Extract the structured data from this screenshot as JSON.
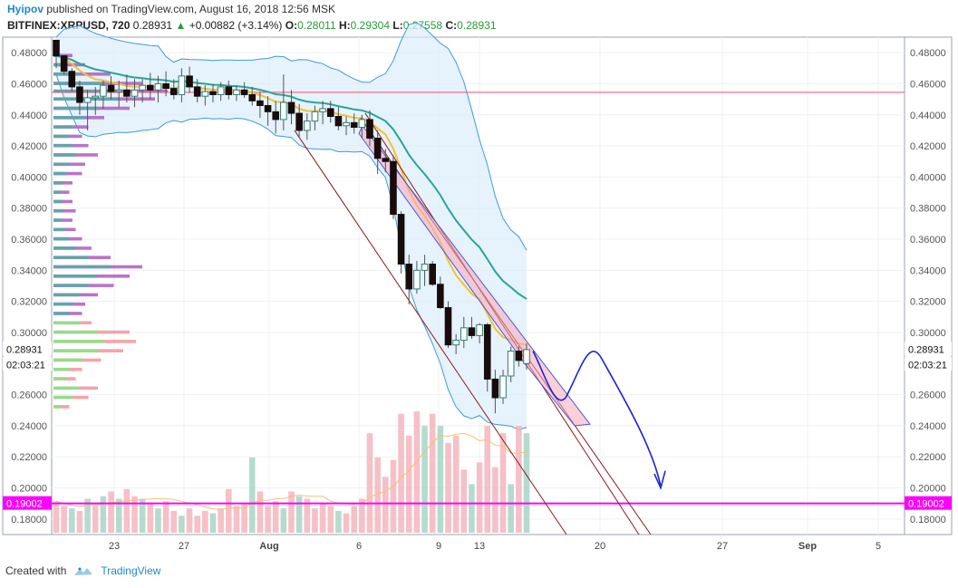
{
  "header": {
    "author": "Hyipov",
    "published": "published on TradingView.com, August 16, 2018 12:56 MSK",
    "symbol": "BITFINEX:XRPUSD, 720",
    "last": "0.28931",
    "change": "+0.00882 (+3.14%)",
    "o_label": "O:",
    "o": "0.28011",
    "h_label": "H:",
    "h": "0.29304",
    "l_label": "L:",
    "l": "0.27558",
    "c_label": "C:",
    "c": "0.28931"
  },
  "footer": {
    "created_with": "Created with",
    "brand": "TradingView"
  },
  "colors": {
    "up": "#ffffff",
    "down": "#1a0a0a",
    "pink_line": "#ff4d6d",
    "magenta": "#ff00ff",
    "channel": "#8b1a1a",
    "arrow": "#1a24d8",
    "ema_yellow": "#f2c230",
    "ema_teal": "#26a69a",
    "band": "#dcecfb",
    "vol_up": "#a8d5c4",
    "vol_down": "#f4b5bd"
  },
  "chart_data": {
    "type": "candlestick",
    "y_axis": {
      "min": 0.17,
      "max": 0.49,
      "ticks": [
        "0.48000",
        "0.46000",
        "0.44000",
        "0.42000",
        "0.40000",
        "0.38000",
        "0.36000",
        "0.34000",
        "0.32000",
        "0.30000",
        "0.26000",
        "0.24000",
        "0.22000",
        "0.20000",
        "0.18000"
      ]
    },
    "x_axis": {
      "ticks": [
        "23",
        "27",
        "Aug",
        "6",
        "9",
        "13",
        "20",
        "27",
        "Sep",
        "5"
      ]
    },
    "price_label": "0.28931",
    "countdown_label": "02:03:21",
    "level_label": "0.19002",
    "horizontal_line": 0.4545,
    "candles": [
      [
        0.488,
        0.488,
        0.47,
        0.478
      ],
      [
        0.478,
        0.478,
        0.466,
        0.468
      ],
      [
        0.468,
        0.47,
        0.455,
        0.458
      ],
      [
        0.458,
        0.462,
        0.44,
        0.448
      ],
      [
        0.448,
        0.456,
        0.43,
        0.451
      ],
      [
        0.451,
        0.458,
        0.44,
        0.452
      ],
      [
        0.452,
        0.462,
        0.444,
        0.459
      ],
      [
        0.459,
        0.465,
        0.45,
        0.455
      ],
      [
        0.455,
        0.462,
        0.445,
        0.456
      ],
      [
        0.456,
        0.466,
        0.448,
        0.452
      ],
      [
        0.452,
        0.463,
        0.445,
        0.456
      ],
      [
        0.456,
        0.463,
        0.448,
        0.459
      ],
      [
        0.459,
        0.467,
        0.45,
        0.456
      ],
      [
        0.456,
        0.465,
        0.448,
        0.46
      ],
      [
        0.46,
        0.468,
        0.452,
        0.457
      ],
      [
        0.457,
        0.463,
        0.45,
        0.453
      ],
      [
        0.453,
        0.47,
        0.448,
        0.465
      ],
      [
        0.465,
        0.471,
        0.454,
        0.458
      ],
      [
        0.458,
        0.463,
        0.448,
        0.452
      ],
      [
        0.452,
        0.459,
        0.446,
        0.455
      ],
      [
        0.455,
        0.46,
        0.448,
        0.453
      ],
      [
        0.453,
        0.461,
        0.449,
        0.458
      ],
      [
        0.458,
        0.462,
        0.45,
        0.453
      ],
      [
        0.453,
        0.459,
        0.449,
        0.456
      ],
      [
        0.456,
        0.461,
        0.451,
        0.453
      ],
      [
        0.453,
        0.458,
        0.446,
        0.449
      ],
      [
        0.449,
        0.455,
        0.438,
        0.446
      ],
      [
        0.446,
        0.452,
        0.433,
        0.442
      ],
      [
        0.442,
        0.449,
        0.428,
        0.437
      ],
      [
        0.437,
        0.466,
        0.43,
        0.448
      ],
      [
        0.448,
        0.456,
        0.434,
        0.441
      ],
      [
        0.441,
        0.447,
        0.426,
        0.43
      ],
      [
        0.43,
        0.441,
        0.424,
        0.436
      ],
      [
        0.436,
        0.446,
        0.43,
        0.442
      ],
      [
        0.442,
        0.449,
        0.434,
        0.444
      ],
      [
        0.444,
        0.449,
        0.435,
        0.439
      ],
      [
        0.439,
        0.445,
        0.43,
        0.433
      ],
      [
        0.433,
        0.439,
        0.427,
        0.435
      ],
      [
        0.435,
        0.441,
        0.428,
        0.432
      ],
      [
        0.432,
        0.44,
        0.425,
        0.437
      ],
      [
        0.437,
        0.443,
        0.42,
        0.425
      ],
      [
        0.425,
        0.43,
        0.402,
        0.412
      ],
      [
        0.412,
        0.418,
        0.403,
        0.41
      ],
      [
        0.41,
        0.414,
        0.373,
        0.376
      ],
      [
        0.376,
        0.378,
        0.338,
        0.344
      ],
      [
        0.344,
        0.35,
        0.318,
        0.328
      ],
      [
        0.328,
        0.346,
        0.325,
        0.34
      ],
      [
        0.34,
        0.35,
        0.33,
        0.344
      ],
      [
        0.344,
        0.346,
        0.33,
        0.331
      ],
      [
        0.331,
        0.336,
        0.315,
        0.316
      ],
      [
        0.316,
        0.32,
        0.29,
        0.292
      ],
      [
        0.292,
        0.299,
        0.286,
        0.295
      ],
      [
        0.295,
        0.31,
        0.29,
        0.303
      ],
      [
        0.303,
        0.31,
        0.296,
        0.298
      ],
      [
        0.298,
        0.306,
        0.293,
        0.305
      ],
      [
        0.305,
        0.306,
        0.262,
        0.27
      ],
      [
        0.27,
        0.276,
        0.248,
        0.258
      ],
      [
        0.258,
        0.276,
        0.254,
        0.272
      ],
      [
        0.272,
        0.291,
        0.268,
        0.288
      ],
      [
        0.288,
        0.291,
        0.278,
        0.282
      ],
      [
        0.28,
        0.293,
        0.276,
        0.289
      ]
    ],
    "volume": [
      [
        0,
        0.26
      ],
      [
        0,
        0.22
      ],
      [
        1,
        0.2
      ],
      [
        0,
        0.18
      ],
      [
        1,
        0.28
      ],
      [
        0,
        0.22
      ],
      [
        1,
        0.3
      ],
      [
        0,
        0.34
      ],
      [
        1,
        0.28
      ],
      [
        0,
        0.36
      ],
      [
        0,
        0.3
      ],
      [
        1,
        0.28
      ],
      [
        0,
        0.24
      ],
      [
        1,
        0.2
      ],
      [
        0,
        0.26
      ],
      [
        0,
        0.18
      ],
      [
        1,
        0.14
      ],
      [
        0,
        0.2
      ],
      [
        0,
        0.14
      ],
      [
        0,
        0.18
      ],
      [
        1,
        0.16
      ],
      [
        0,
        0.2
      ],
      [
        0,
        0.36
      ],
      [
        0,
        0.22
      ],
      [
        0,
        0.24
      ],
      [
        1,
        0.62
      ],
      [
        0,
        0.34
      ],
      [
        0,
        0.22
      ],
      [
        0,
        0.26
      ],
      [
        1,
        0.2
      ],
      [
        0,
        0.34
      ],
      [
        1,
        0.3
      ],
      [
        0,
        0.28
      ],
      [
        0,
        0.2
      ],
      [
        0,
        0.24
      ],
      [
        0,
        0.22
      ],
      [
        1,
        0.18
      ],
      [
        0,
        0.16
      ],
      [
        0,
        0.22
      ],
      [
        0,
        0.28
      ],
      [
        0,
        0.82
      ],
      [
        0,
        0.62
      ],
      [
        0,
        0.46
      ],
      [
        0,
        0.6
      ],
      [
        0,
        0.98
      ],
      [
        0,
        0.8
      ],
      [
        0,
        1.0
      ],
      [
        1,
        0.88
      ],
      [
        0,
        0.98
      ],
      [
        1,
        0.88
      ],
      [
        0,
        0.74
      ],
      [
        0,
        0.8
      ],
      [
        0,
        0.52
      ],
      [
        1,
        0.4
      ],
      [
        0,
        0.58
      ],
      [
        0,
        0.88
      ],
      [
        0,
        0.54
      ],
      [
        0,
        0.82
      ],
      [
        1,
        0.4
      ],
      [
        0,
        0.88
      ],
      [
        1,
        0.82
      ]
    ],
    "volume_profile": [
      [
        0.478,
        0.3,
        0.1
      ],
      [
        0.472,
        0.5,
        0.2
      ],
      [
        0.466,
        0.9,
        0.4
      ],
      [
        0.46,
        1.4,
        0.8
      ],
      [
        0.455,
        1.8,
        1.2
      ],
      [
        0.45,
        1.6,
        1.0
      ],
      [
        0.444,
        1.2,
        0.7
      ],
      [
        0.438,
        0.8,
        0.5
      ],
      [
        0.432,
        0.55,
        0.3
      ],
      [
        0.426,
        0.45,
        0.25
      ],
      [
        0.42,
        0.55,
        0.3
      ],
      [
        0.414,
        0.7,
        0.35
      ],
      [
        0.408,
        0.5,
        0.25
      ],
      [
        0.402,
        0.45,
        0.2
      ],
      [
        0.396,
        0.3,
        0.15
      ],
      [
        0.39,
        0.25,
        0.12
      ],
      [
        0.384,
        0.3,
        0.15
      ],
      [
        0.378,
        0.35,
        0.15
      ],
      [
        0.372,
        0.3,
        0.14
      ],
      [
        0.366,
        0.35,
        0.18
      ],
      [
        0.36,
        0.45,
        0.25
      ],
      [
        0.354,
        0.6,
        0.35
      ],
      [
        0.348,
        0.9,
        0.55
      ],
      [
        0.342,
        1.4,
        0.9
      ],
      [
        0.336,
        1.2,
        0.7
      ],
      [
        0.33,
        0.95,
        0.55
      ],
      [
        0.324,
        0.7,
        0.4
      ],
      [
        0.318,
        0.5,
        0.3
      ],
      [
        0.312,
        0.45,
        0.25
      ],
      [
        0.306,
        0.6,
        0.4
      ],
      [
        0.3,
        1.2,
        0.7
      ],
      [
        0.294,
        1.3,
        0.8
      ],
      [
        0.288,
        1.1,
        0.7
      ],
      [
        0.282,
        0.75,
        0.45
      ],
      [
        0.276,
        0.45,
        0.25
      ],
      [
        0.27,
        0.35,
        0.2
      ],
      [
        0.264,
        0.7,
        0.4
      ],
      [
        0.258,
        0.55,
        0.3
      ],
      [
        0.252,
        0.25,
        0.12
      ]
    ]
  }
}
